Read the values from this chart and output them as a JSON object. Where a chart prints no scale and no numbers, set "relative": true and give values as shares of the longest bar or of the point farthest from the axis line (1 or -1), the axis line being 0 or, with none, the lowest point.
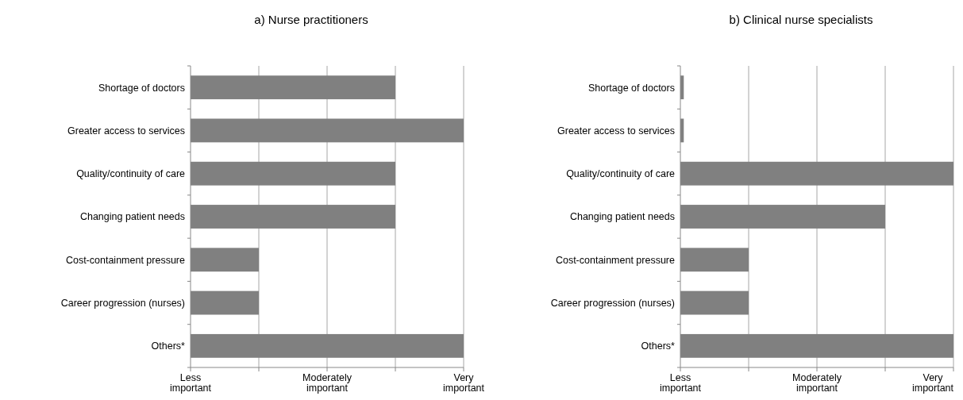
{
  "chart_data": [
    {
      "type": "bar",
      "orientation": "horizontal",
      "relative": true,
      "title": "a) Nurse practitioners",
      "categories": [
        "Shortage of doctors",
        "Greater access to services",
        "Quality/continuity of care",
        "Changing patient needs",
        "Cost-containment pressure",
        "Career progression (nurses)",
        "Others*"
      ],
      "values": [
        0.75,
        1,
        0.75,
        0.75,
        0.25,
        0.25,
        1
      ],
      "color": "#808080",
      "annotations": [
        "Less important",
        "Moderately important",
        "Very important"
      ],
      "grid": "x"
    },
    {
      "type": "bar",
      "orientation": "horizontal",
      "relative": true,
      "title": "b) Clinical nurse specialists",
      "categories": [
        "Shortage of doctors",
        "Greater access to services",
        "Quality/continuity of care",
        "Changing patient needs",
        "Cost-containment pressure",
        "Career progression (nurses)",
        "Others*"
      ],
      "values": [
        0.0125,
        0.0125,
        1,
        0.75,
        0.25,
        0.25,
        1
      ],
      "color": "#808080",
      "annotations": [
        "Less important",
        "Moderately important",
        "Very important"
      ],
      "grid": "x"
    }
  ]
}
